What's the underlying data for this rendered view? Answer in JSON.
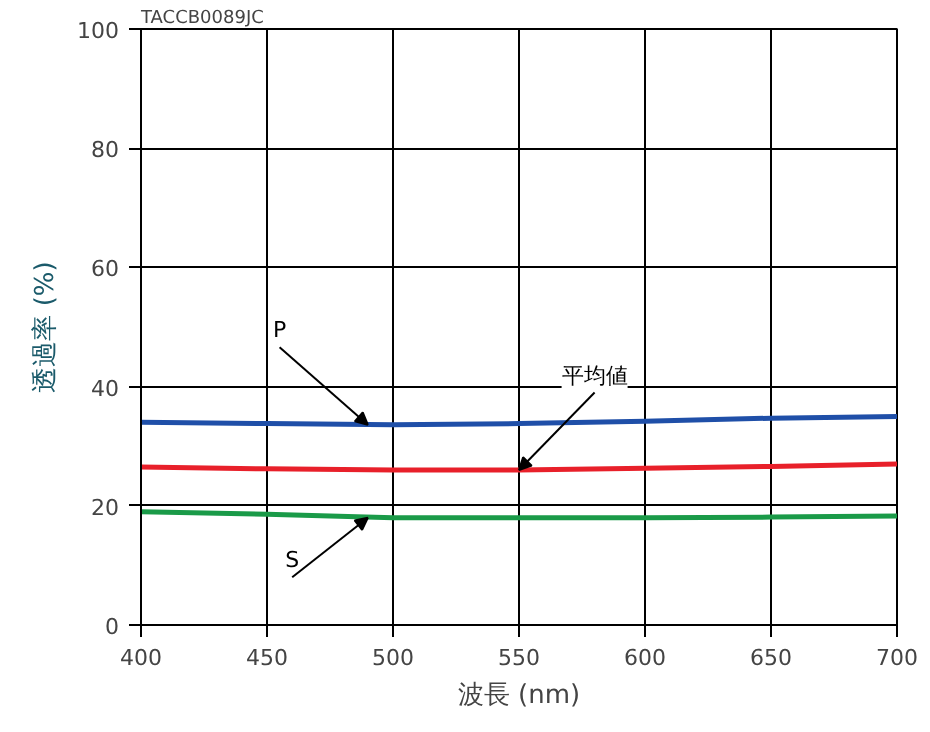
{
  "chart_data": {
    "type": "line",
    "xlabel": "波長 (nm)",
    "ylabel": "透過率 (%)",
    "x": [
      400,
      450,
      500,
      550,
      600,
      650,
      700
    ],
    "series": [
      {
        "name": "P",
        "color": "#1f4fa8",
        "values": [
          34,
          33.8,
          33.6,
          33.8,
          34.2,
          34.7,
          35
        ]
      },
      {
        "name": "平均値",
        "color": "#e8202a",
        "values": [
          26.5,
          26.2,
          26,
          26,
          26.3,
          26.6,
          27
        ]
      },
      {
        "name": "S",
        "color": "#1a9a48",
        "values": [
          19,
          18.6,
          18,
          18,
          18,
          18.1,
          18.3
        ]
      }
    ],
    "xlim": [
      400,
      700
    ],
    "ylim": [
      0,
      100
    ],
    "xticks": [
      400,
      450,
      500,
      550,
      600,
      650,
      700
    ],
    "yticks": [
      0,
      20,
      40,
      60,
      80,
      100
    ],
    "grid": true,
    "legend": false,
    "marker": "none",
    "line_style": "solid",
    "annotations": [
      "TACCB0089JC"
    ]
  }
}
